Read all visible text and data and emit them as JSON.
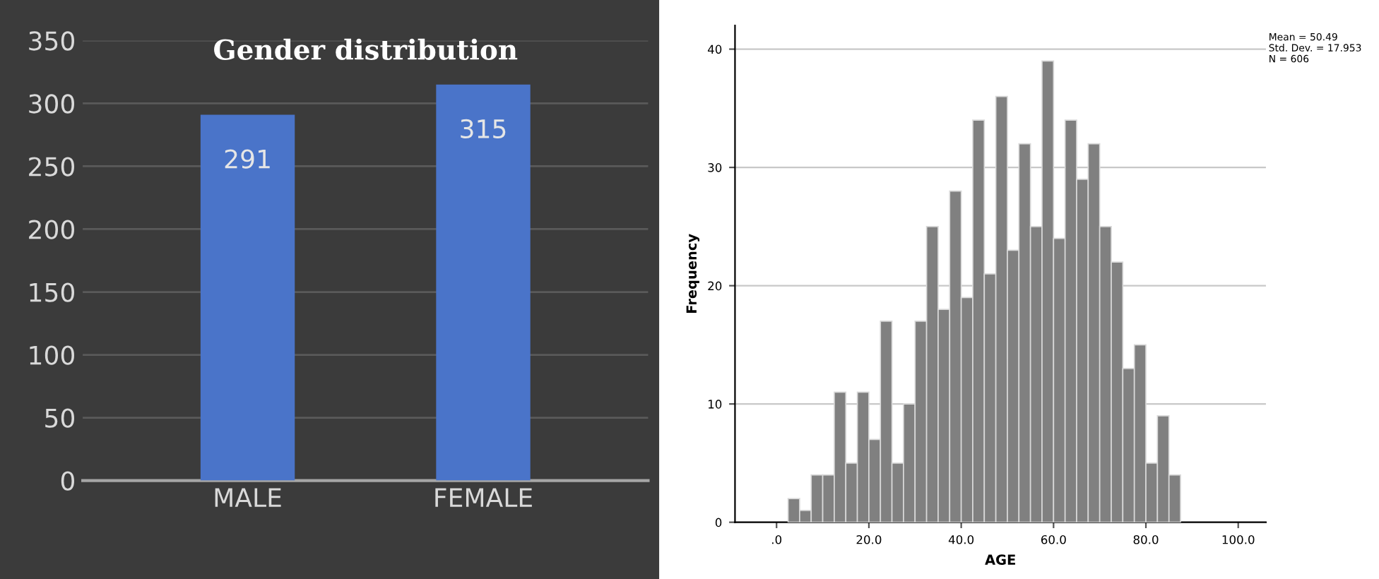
{
  "chart_data": [
    {
      "type": "bar",
      "title": "Gender distribution",
      "categories": [
        "MALE",
        "FEMALE"
      ],
      "values": [
        291,
        315
      ],
      "color": "#4a74c9",
      "ylim": [
        0,
        350
      ],
      "yticks": [
        0,
        50,
        100,
        150,
        200,
        250,
        300,
        350
      ],
      "grid": "y",
      "data_labels": true
    },
    {
      "type": "histogram",
      "xlabel": "AGE",
      "ylabel": "Frequency",
      "bins": [
        2.5,
        5,
        7.5,
        10,
        12.5,
        15,
        17.5,
        20,
        22.5,
        25,
        27.5,
        30,
        32.5,
        35,
        37.5,
        40,
        42.5,
        45,
        47.5,
        50,
        52.5,
        55,
        57.5,
        60,
        62.5,
        65,
        67.5,
        70,
        72.5,
        75,
        77.5,
        80,
        82.5,
        85,
        87.5
      ],
      "values": [
        2,
        1,
        4,
        4,
        11,
        5,
        11,
        7,
        17,
        5,
        10,
        17,
        25,
        18,
        28,
        19,
        34,
        21,
        36,
        23,
        32,
        25,
        39,
        24,
        34,
        29,
        32,
        25,
        22,
        13,
        15,
        5,
        9,
        4
      ],
      "color": "#808080",
      "xlim": [
        -9,
        106
      ],
      "xticks": [
        {
          "value": 0,
          "label": ".0"
        },
        {
          "value": 20,
          "label": "20.0"
        },
        {
          "value": 40,
          "label": "40.0"
        },
        {
          "value": 60,
          "label": "60.0"
        },
        {
          "value": 80,
          "label": "80.0"
        },
        {
          "value": 100,
          "label": "100.0"
        }
      ],
      "ylim": [
        0,
        42
      ],
      "yticks": [
        0,
        10,
        20,
        30,
        40
      ],
      "grid": "y",
      "annotations": [
        "Mean = 50.49",
        "Std. Dev. = 17.953",
        "N = 606"
      ]
    }
  ]
}
